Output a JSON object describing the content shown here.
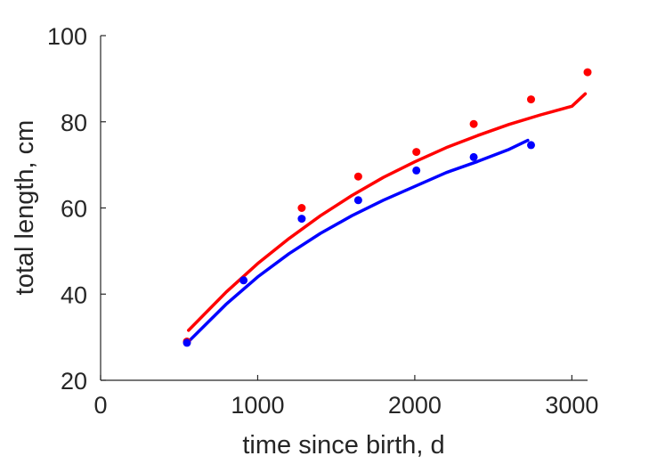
{
  "chart_data": {
    "type": "scatter",
    "xlabel": "time since birth, d",
    "ylabel": "total length, cm",
    "xlim": [
      0,
      3100
    ],
    "ylim": [
      20,
      100
    ],
    "xticks": [
      0,
      1000,
      2000,
      3000
    ],
    "yticks": [
      20,
      40,
      60,
      80,
      100
    ],
    "xtick_labels": [
      "0",
      "1000",
      "2000",
      "3000"
    ],
    "ytick_labels": [
      "20",
      "40",
      "60",
      "80",
      "100"
    ],
    "grid": false,
    "legend": "none",
    "series": [
      {
        "color": "#ff0000",
        "points": {
          "x": [
            550,
            1280,
            1640,
            2010,
            2375,
            2740,
            3100
          ],
          "y": [
            29.0,
            60.0,
            67.3,
            73.0,
            79.5,
            85.2,
            91.5
          ]
        },
        "fit": {
          "x": [
            560,
            800,
            1000,
            1200,
            1400,
            1600,
            1800,
            2000,
            2200,
            2400,
            2600,
            2800,
            3000,
            3085
          ],
          "y": [
            31.6,
            40.5,
            47.1,
            52.9,
            58.2,
            62.9,
            67.1,
            70.7,
            74.0,
            76.8,
            79.4,
            81.6,
            83.6,
            86.5
          ]
        }
      },
      {
        "color": "#0000ff",
        "points": {
          "x": [
            550,
            910,
            1280,
            1640,
            2010,
            2375,
            2740
          ],
          "y": [
            28.7,
            43.2,
            57.5,
            61.8,
            68.7,
            71.8,
            74.6
          ]
        },
        "fit": {
          "x": [
            560,
            800,
            1000,
            1200,
            1400,
            1600,
            1800,
            2000,
            2200,
            2400,
            2600,
            2720
          ],
          "y": [
            29.0,
            37.7,
            44.0,
            49.4,
            54.1,
            58.2,
            61.8,
            65.0,
            68.2,
            70.8,
            73.6,
            75.7
          ]
        }
      }
    ]
  }
}
